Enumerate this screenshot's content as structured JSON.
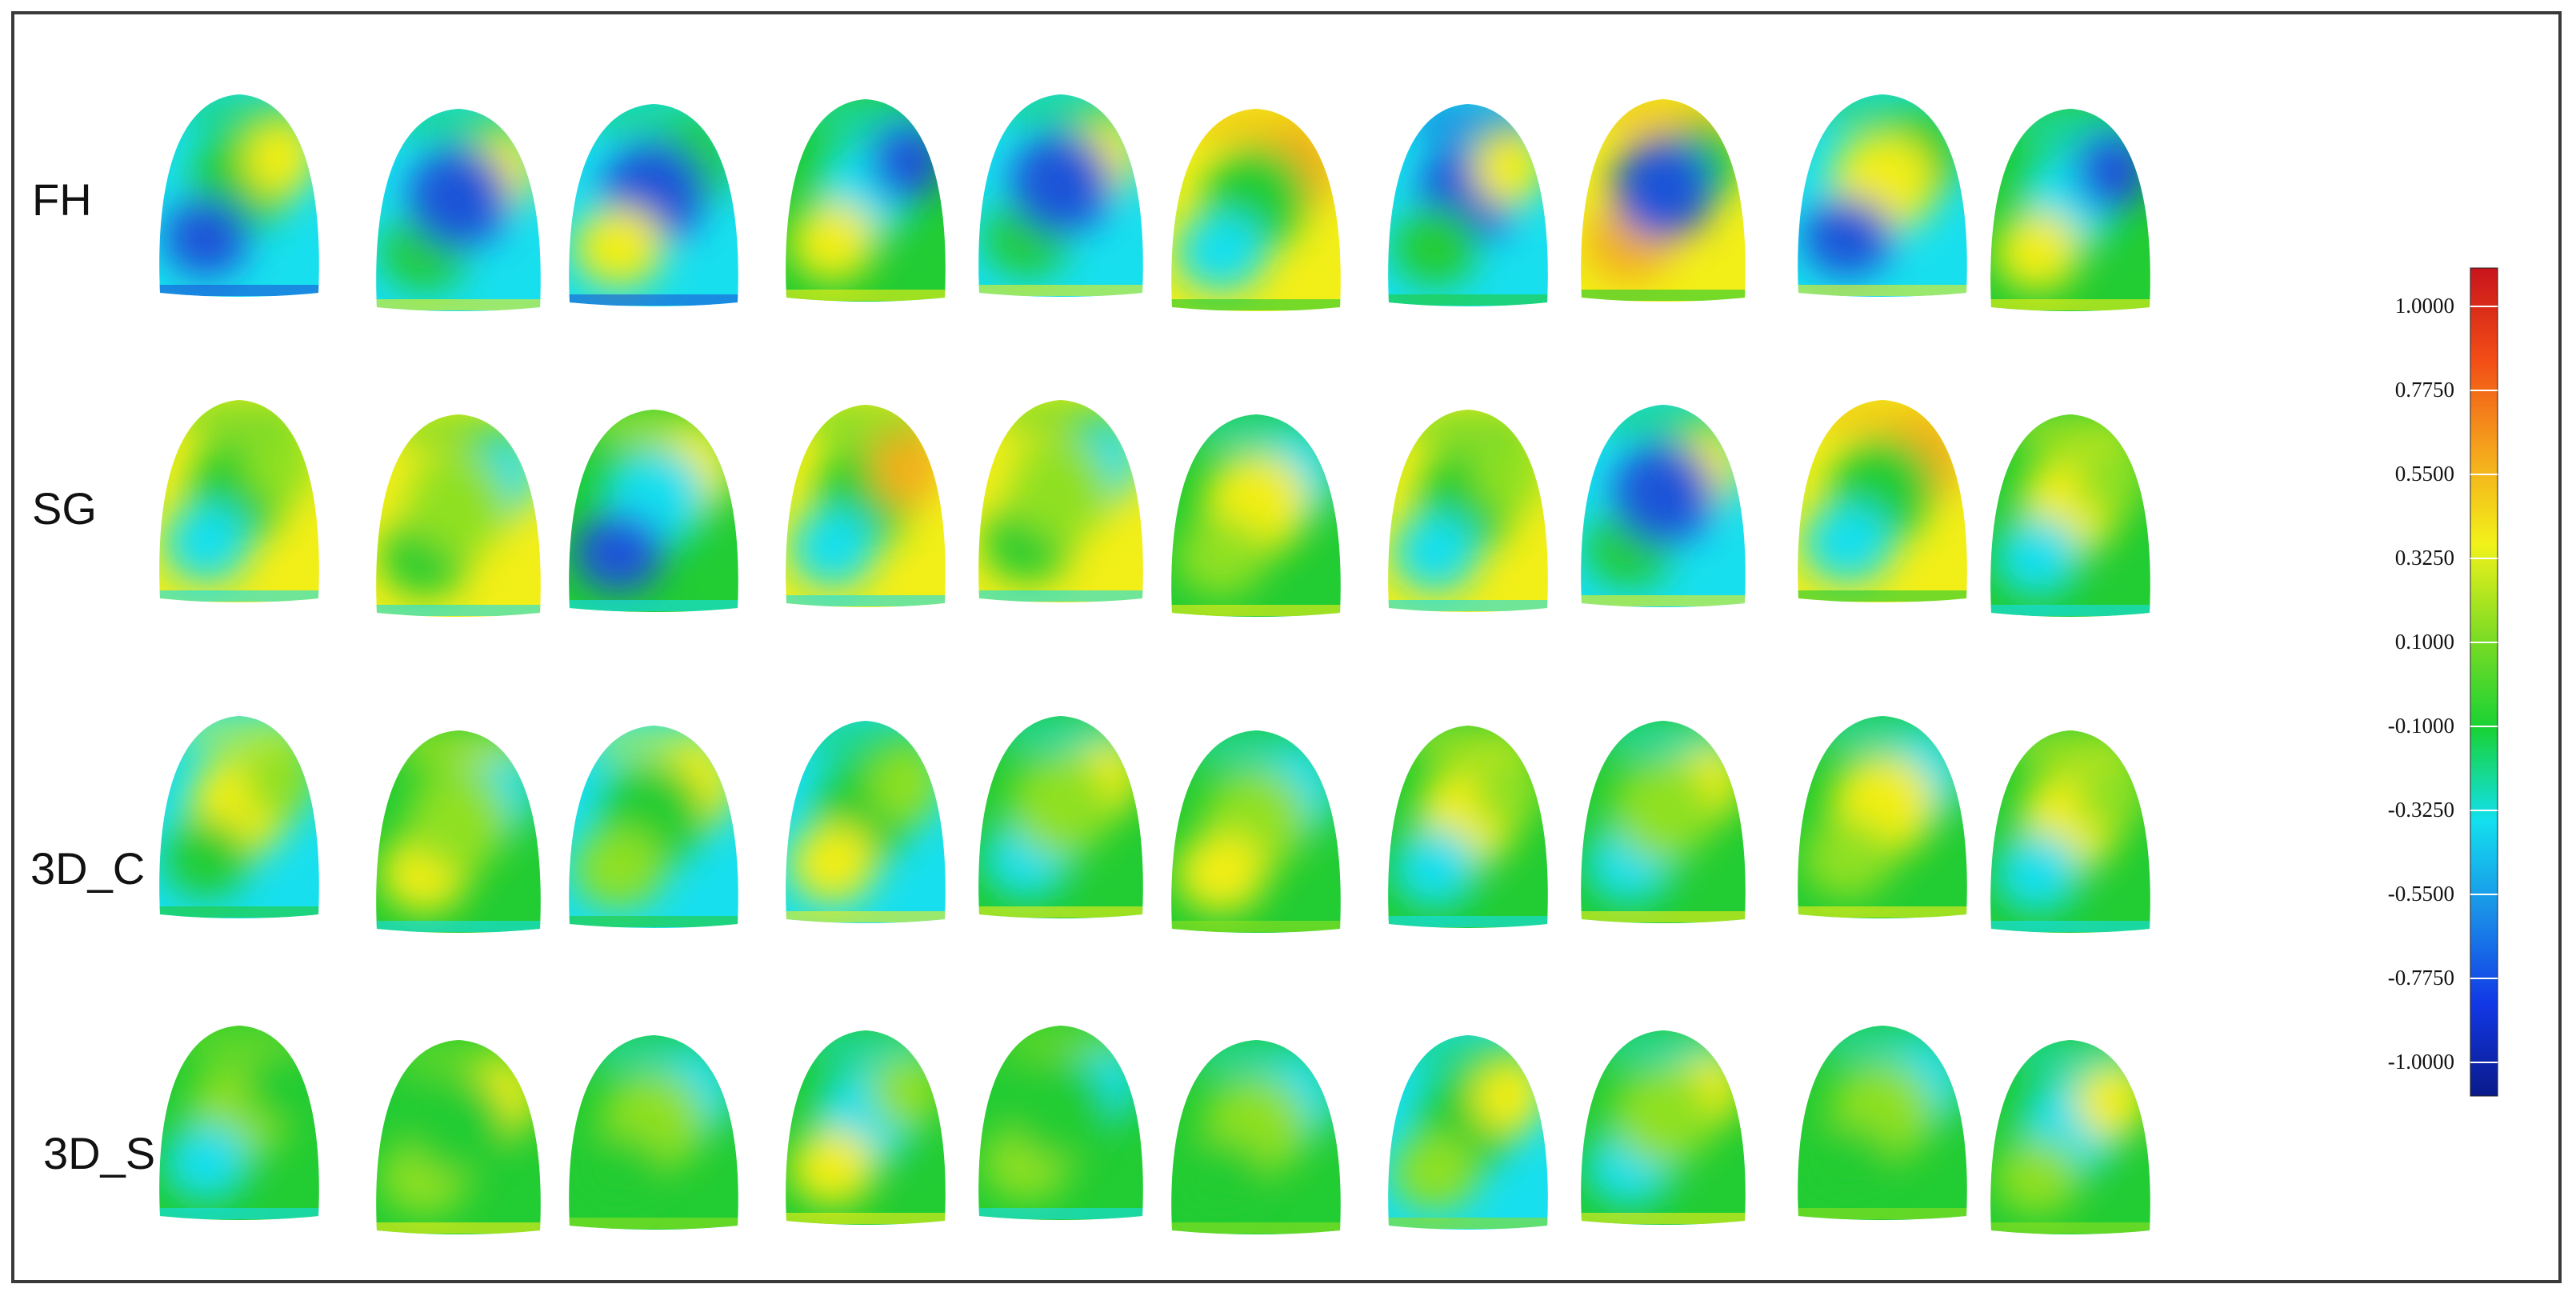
{
  "rows": [
    {
      "label": "FH"
    },
    {
      "label": "SG"
    },
    {
      "label": "3D_C"
    },
    {
      "label": "3D_S"
    }
  ],
  "colorbar": {
    "ticks": [
      "1.0000",
      "0.7750",
      "0.5500",
      "0.3250",
      "0.1000",
      "-0.1000",
      "-0.3250",
      "-0.5500",
      "-0.7750",
      "-1.0000"
    ],
    "range": [
      -1.0,
      1.0
    ],
    "gradient_stops": [
      "#0a1a8a",
      "#1238e6",
      "#1a8fe8",
      "#13e0ee",
      "#18d234",
      "#7fdc24",
      "#f2f21a",
      "#f5a51c",
      "#f24d16",
      "#c8141c"
    ]
  },
  "colors": {
    "blue": "#1a55d8",
    "cyan": "#18dfee",
    "green": "#22cc33",
    "lime": "#8fe020",
    "yellow": "#f2ee18",
    "orange": "#f2b01a"
  },
  "heatmaps": [
    {
      "row": 0,
      "base": "cyan",
      "patches": [
        "green",
        "blue",
        "yellow"
      ]
    },
    {
      "row": 0,
      "base": "cyan",
      "patches": [
        "green",
        "yellow",
        "blue"
      ]
    },
    {
      "row": 0,
      "base": "cyan",
      "patches": [
        "green",
        "blue",
        "yellow"
      ]
    },
    {
      "row": 0,
      "base": "green",
      "patches": [
        "cyan",
        "yellow",
        "blue"
      ]
    },
    {
      "row": 0,
      "base": "cyan",
      "patches": [
        "green",
        "yellow",
        "blue"
      ]
    },
    {
      "row": 0,
      "base": "yellow",
      "patches": [
        "orange",
        "green",
        "cyan"
      ]
    },
    {
      "row": 0,
      "base": "cyan",
      "patches": [
        "blue",
        "green",
        "yellow"
      ]
    },
    {
      "row": 0,
      "base": "yellow",
      "patches": [
        "orange",
        "green",
        "blue"
      ]
    },
    {
      "row": 0,
      "base": "cyan",
      "patches": [
        "green",
        "yellow",
        "blue"
      ]
    },
    {
      "row": 0,
      "base": "green",
      "patches": [
        "cyan",
        "yellow",
        "blue"
      ]
    },
    {
      "row": 1,
      "base": "yellow",
      "patches": [
        "green",
        "cyan",
        "lime"
      ]
    },
    {
      "row": 1,
      "base": "yellow",
      "patches": [
        "green",
        "cyan",
        "lime"
      ]
    },
    {
      "row": 1,
      "base": "green",
      "patches": [
        "yellow",
        "cyan",
        "blue"
      ]
    },
    {
      "row": 1,
      "base": "yellow",
      "patches": [
        "green",
        "cyan",
        "orange"
      ]
    },
    {
      "row": 1,
      "base": "yellow",
      "patches": [
        "green",
        "cyan",
        "lime"
      ]
    },
    {
      "row": 1,
      "base": "green",
      "patches": [
        "cyan",
        "yellow",
        "lime"
      ]
    },
    {
      "row": 1,
      "base": "yellow",
      "patches": [
        "green",
        "cyan",
        "lime"
      ]
    },
    {
      "row": 1,
      "base": "cyan",
      "patches": [
        "green",
        "yellow",
        "blue"
      ]
    },
    {
      "row": 1,
      "base": "yellow",
      "patches": [
        "orange",
        "green",
        "cyan"
      ]
    },
    {
      "row": 1,
      "base": "green",
      "patches": [
        "yellow",
        "cyan",
        "lime"
      ]
    },
    {
      "row": 2,
      "base": "cyan",
      "patches": [
        "yellow",
        "green",
        "lime"
      ]
    },
    {
      "row": 2,
      "base": "green",
      "patches": [
        "yellow",
        "cyan",
        "lime"
      ]
    },
    {
      "row": 2,
      "base": "cyan",
      "patches": [
        "yellow",
        "green",
        "lime"
      ]
    },
    {
      "row": 2,
      "base": "cyan",
      "patches": [
        "green",
        "yellow",
        "lime"
      ]
    },
    {
      "row": 2,
      "base": "green",
      "patches": [
        "cyan",
        "yellow",
        "lime"
      ]
    },
    {
      "row": 2,
      "base": "green",
      "patches": [
        "cyan",
        "lime",
        "yellow"
      ]
    },
    {
      "row": 2,
      "base": "green",
      "patches": [
        "yellow",
        "cyan",
        "lime"
      ]
    },
    {
      "row": 2,
      "base": "green",
      "patches": [
        "cyan",
        "yellow",
        "lime"
      ]
    },
    {
      "row": 2,
      "base": "green",
      "patches": [
        "cyan",
        "yellow",
        "lime"
      ]
    },
    {
      "row": 2,
      "base": "green",
      "patches": [
        "yellow",
        "cyan",
        "lime"
      ]
    },
    {
      "row": 3,
      "base": "green",
      "patches": [
        "lime",
        "cyan",
        "green"
      ]
    },
    {
      "row": 3,
      "base": "green",
      "patches": [
        "lime",
        "yellow",
        "green"
      ]
    },
    {
      "row": 3,
      "base": "green",
      "patches": [
        "cyan",
        "lime",
        "green"
      ]
    },
    {
      "row": 3,
      "base": "green",
      "patches": [
        "cyan",
        "yellow",
        "lime"
      ]
    },
    {
      "row": 3,
      "base": "green",
      "patches": [
        "lime",
        "cyan",
        "green"
      ]
    },
    {
      "row": 3,
      "base": "green",
      "patches": [
        "cyan",
        "lime",
        "green"
      ]
    },
    {
      "row": 3,
      "base": "cyan",
      "patches": [
        "green",
        "lime",
        "yellow"
      ]
    },
    {
      "row": 3,
      "base": "green",
      "patches": [
        "cyan",
        "yellow",
        "lime"
      ]
    },
    {
      "row": 3,
      "base": "green",
      "patches": [
        "cyan",
        "lime",
        "green"
      ]
    },
    {
      "row": 3,
      "base": "green",
      "patches": [
        "cyan",
        "lime",
        "yellow"
      ]
    }
  ]
}
